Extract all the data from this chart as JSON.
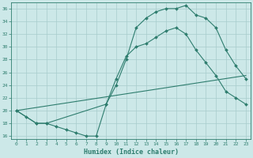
{
  "xlabel": "Humidex (Indice chaleur)",
  "xlim": [
    -0.5,
    23.5
  ],
  "ylim": [
    15.5,
    37
  ],
  "yticks": [
    16,
    18,
    20,
    22,
    24,
    26,
    28,
    30,
    32,
    34,
    36
  ],
  "xticks": [
    0,
    1,
    2,
    3,
    4,
    5,
    6,
    7,
    8,
    9,
    10,
    11,
    12,
    13,
    14,
    15,
    16,
    17,
    18,
    19,
    20,
    21,
    22,
    23
  ],
  "line_color": "#2e7d6e",
  "background_color": "#cce8e8",
  "grid_color": "#a8cccc",
  "line1_x": [
    0,
    1,
    2,
    3,
    4,
    5,
    6,
    7,
    8,
    9,
    10,
    11,
    12,
    13,
    14,
    15,
    16,
    17,
    18,
    19,
    20,
    21,
    22,
    23
  ],
  "line1_y": [
    20,
    19,
    18,
    18,
    17.5,
    17,
    16.5,
    16,
    16,
    21,
    25,
    28.5,
    30,
    30.5,
    31.5,
    32.5,
    33,
    32,
    29.5,
    27.5,
    25.5,
    23,
    22,
    21
  ],
  "line2_x": [
    0,
    2,
    3,
    9,
    10,
    11,
    12,
    13,
    14,
    15,
    16,
    17,
    18,
    19,
    20,
    21,
    22,
    23
  ],
  "line2_y": [
    20,
    18,
    18,
    21,
    24,
    28,
    33,
    34.5,
    35.5,
    36,
    36,
    36.5,
    35,
    34.5,
    33,
    29.5,
    27,
    25
  ],
  "line3_x": [
    0,
    23
  ],
  "line3_y": [
    20,
    25.5
  ]
}
